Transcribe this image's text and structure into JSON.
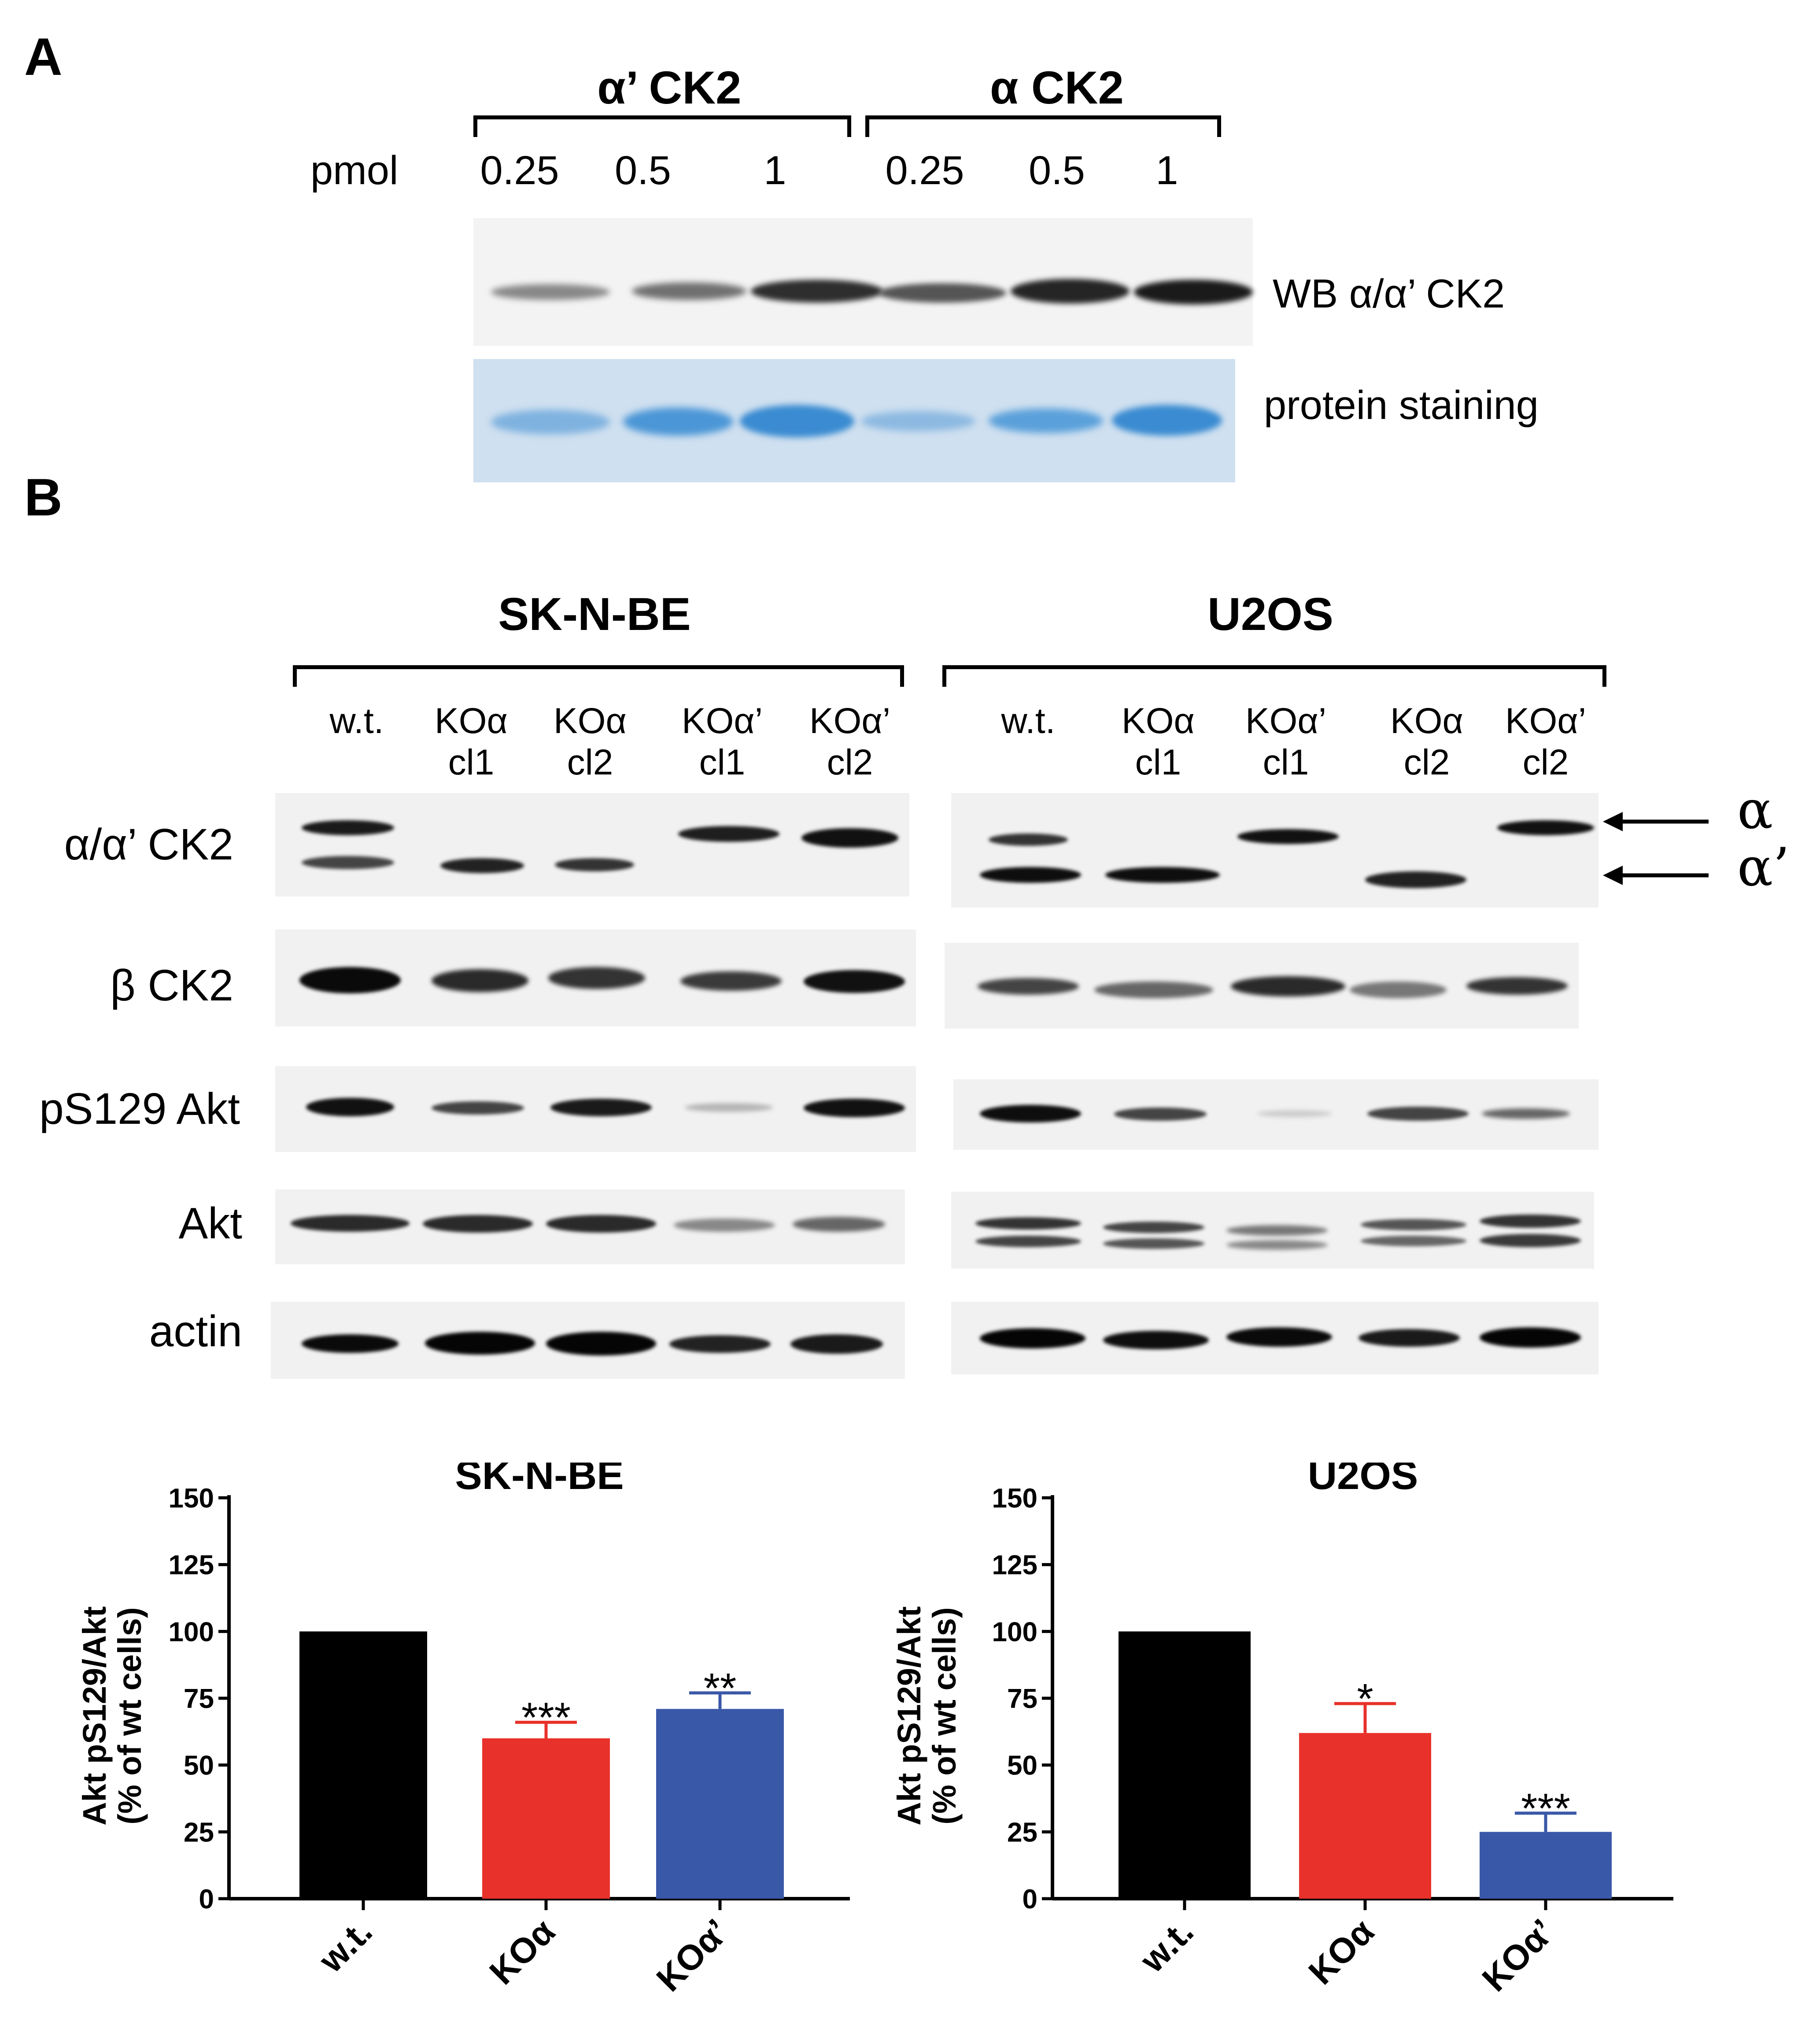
{
  "panel_a": {
    "letter": "A",
    "group_prime": "α’ CK2",
    "group_alpha": "α CK2",
    "pmol_label": "pmol",
    "amounts": [
      "0.25",
      "0.5",
      "1",
      "0.25",
      "0.5",
      "1"
    ],
    "wb_label": "WB α/α’ CK2",
    "stain_label": "protein staining"
  },
  "panel_b": {
    "letter": "B",
    "left_cell_line": "SK-N-BE",
    "right_cell_line": "U2OS",
    "left_lanes": [
      {
        "top": "w.t.",
        "bottom": ""
      },
      {
        "top": "KOα",
        "bottom": "cl1"
      },
      {
        "top": "KOα",
        "bottom": "cl2"
      },
      {
        "top": "KOα’",
        "bottom": "cl1"
      },
      {
        "top": "KOα’",
        "bottom": "cl2"
      }
    ],
    "right_lanes": [
      {
        "top": "w.t.",
        "bottom": ""
      },
      {
        "top": "KOα",
        "bottom": "cl1"
      },
      {
        "top": "KOα’",
        "bottom": "cl1"
      },
      {
        "top": "KOα",
        "bottom": "cl2"
      },
      {
        "top": "KOα’",
        "bottom": "cl2"
      }
    ],
    "row_labels": [
      "α/α’ CK2",
      "β CK2",
      "pS129 Akt",
      "Akt",
      "actin"
    ],
    "arrow_alpha": "α",
    "arrow_alpha_prime": "α’"
  },
  "colors": {
    "wt": "#000000",
    "ko_alpha": "#e8312a",
    "ko_alpha_prime": "#3a58a8",
    "stain_bg": "#cfe0f0",
    "stain_band": "#3f8fd4"
  },
  "chart_data": [
    {
      "type": "bar",
      "title": "SK-N-BE",
      "ylabel": "Akt pS129/Akt\n(% of wt cells)",
      "ylim": [
        0,
        150
      ],
      "yticks": [
        0,
        25,
        50,
        75,
        100,
        125,
        150
      ],
      "categories": [
        "w.t.",
        "KOα",
        "KOα’"
      ],
      "values": [
        100,
        60,
        71
      ],
      "errors": [
        0,
        6,
        6
      ],
      "significance": [
        "",
        "***",
        "**"
      ]
    },
    {
      "type": "bar",
      "title": "U2OS",
      "ylabel": "Akt pS129/Akt\n(% of wt cells)",
      "ylim": [
        0,
        150
      ],
      "yticks": [
        0,
        25,
        50,
        75,
        100,
        125,
        150
      ],
      "categories": [
        "w.t.",
        "KOα",
        "KOα’"
      ],
      "values": [
        100,
        62,
        25
      ],
      "errors": [
        0,
        11,
        7
      ],
      "significance": [
        "",
        "*",
        "***"
      ]
    }
  ]
}
